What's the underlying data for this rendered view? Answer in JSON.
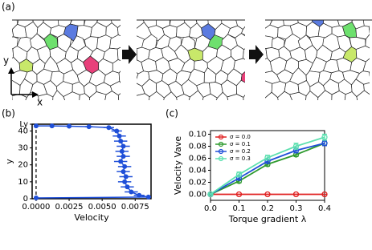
{
  "figure": {
    "panel_labels": [
      "(a)",
      "(b)",
      "(c)"
    ],
    "axis_labels": {
      "x": "x",
      "y": "y"
    }
  },
  "chart_data": [
    {
      "type": "scatter",
      "xlabel": "Velocity",
      "ylabel": "y",
      "color": "#1f4fd8",
      "x": [
        0.0,
        0.0012,
        0.0025,
        0.004,
        0.0055,
        0.0061,
        0.0063,
        0.0064,
        0.0066,
        0.0065,
        0.0066,
        0.0064,
        0.0067,
        0.0066,
        0.0068,
        0.0067,
        0.0069,
        0.0072,
        0.0078,
        0.0085,
        0.0
      ],
      "values": [
        43,
        43,
        42.8,
        42.5,
        42,
        40,
        37,
        34,
        31,
        28,
        25,
        22,
        19,
        16,
        13,
        10,
        7,
        4,
        2,
        1,
        0.5
      ],
      "xerr": [
        0,
        0.0002,
        0.0002,
        0.0003,
        0.0004,
        0.0004,
        0.0005,
        0.0005,
        0.0005,
        0.0005,
        0.0005,
        0.0005,
        0.0005,
        0.0005,
        0.0005,
        0.0005,
        0.0005,
        0.0005,
        0.0004,
        0.0002,
        0
      ],
      "xlim": [
        -0.0003,
        0.0087
      ],
      "ylim": [
        0,
        44
      ],
      "xticks": [
        {
          "value": 0,
          "label": "0.0000"
        },
        {
          "value": 0.0025,
          "label": "0.0025"
        },
        {
          "value": 0.005,
          "label": "0.0050"
        },
        {
          "value": 0.0075,
          "label": "0.0075"
        }
      ],
      "yticks": [
        0,
        10,
        20,
        30,
        40,
        {
          "value": 44,
          "label": "Ly"
        }
      ]
    },
    {
      "type": "line",
      "xlabel": "Torque gradient λ",
      "ylabel": "Velocity Vave",
      "legend": "upper left",
      "x": [
        0,
        0.1,
        0.2,
        0.3,
        0.4
      ],
      "series": [
        {
          "name": "σ = 0.0",
          "color": "#e02020",
          "values": [
            0,
            0,
            0,
            0,
            0
          ],
          "errors": [
            0,
            0,
            0,
            0,
            0
          ]
        },
        {
          "name": "σ = 0.1",
          "color": "#2e9a2e",
          "values": [
            0,
            0.022,
            0.05,
            0.066,
            0.085
          ],
          "errors": [
            0.001,
            0.003,
            0.003,
            0.003,
            0.004
          ]
        },
        {
          "name": "σ = 0.2",
          "color": "#1f4fd8",
          "values": [
            0,
            0.027,
            0.055,
            0.073,
            0.085
          ],
          "errors": [
            0.001,
            0.003,
            0.003,
            0.004,
            0.004
          ]
        },
        {
          "name": "σ = 0.3",
          "color": "#5de0b0",
          "values": [
            0,
            0.033,
            0.061,
            0.08,
            0.095
          ],
          "errors": [
            0.001,
            0.004,
            0.004,
            0.005,
            0.005
          ]
        }
      ],
      "xlim": [
        0,
        0.4
      ],
      "ylim": [
        -0.01,
        0.106
      ],
      "xticks": [
        {
          "value": 0,
          "label": "0.0"
        },
        {
          "value": 0.1,
          "label": "0.1"
        },
        {
          "value": 0.2,
          "label": "0.2"
        },
        {
          "value": 0.3,
          "label": "0.3"
        },
        {
          "value": 0.4,
          "label": "0.4"
        }
      ],
      "yticks": [
        {
          "value": 0,
          "label": "0.00"
        },
        {
          "value": 0.02,
          "label": "0.02"
        },
        {
          "value": 0.04,
          "label": "0.04"
        },
        {
          "value": 0.06,
          "label": "0.06"
        },
        {
          "value": 0.08,
          "label": "0.08"
        },
        {
          "value": 0.1,
          "label": "0.10"
        }
      ]
    }
  ]
}
